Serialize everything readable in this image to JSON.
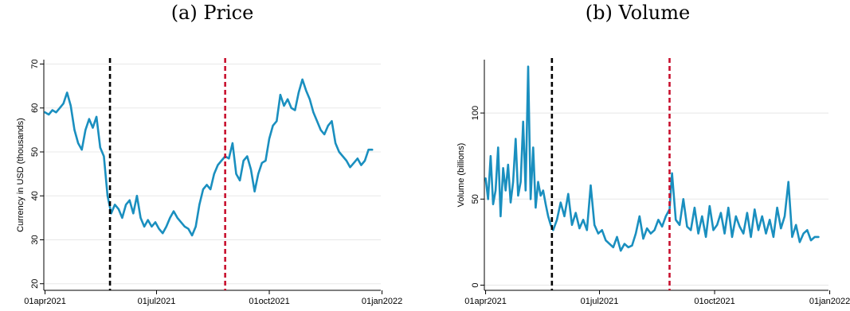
{
  "captions": {
    "a": "(a) Price",
    "b": "(b) Volume"
  },
  "chart_data": [
    {
      "type": "line",
      "title": "(a) Price",
      "xlabel": "",
      "ylabel": "Currency in USD (thousands)",
      "xlim": [
        "2021-03-31",
        "2021-12-31"
      ],
      "ylim": [
        18.5,
        71
      ],
      "y_ticks": [
        20,
        30,
        40,
        50,
        60,
        70
      ],
      "x_ticks": [
        {
          "date": "2021-04-01",
          "label": "01apr2021"
        },
        {
          "date": "2021-07-01",
          "label": "01jul2021"
        },
        {
          "date": "2021-10-01",
          "label": "01oct2021"
        },
        {
          "date": "2022-01-01",
          "label": "01jan2022"
        }
      ],
      "grid": "horizontal",
      "line_color": "#1a8fbf",
      "vlines": [
        {
          "date": "2021-05-24",
          "color": "#000000",
          "style": "dashed"
        },
        {
          "date": "2021-08-26",
          "color": "#c8102e",
          "style": "dashed"
        }
      ],
      "series": [
        {
          "x": [
            "2021-04-01",
            "2021-04-04",
            "2021-04-07",
            "2021-04-10",
            "2021-04-13",
            "2021-04-16",
            "2021-04-19",
            "2021-04-22",
            "2021-04-25",
            "2021-04-28",
            "2021-05-01",
            "2021-05-04",
            "2021-05-07",
            "2021-05-10",
            "2021-05-13",
            "2021-05-16",
            "2021-05-19",
            "2021-05-22",
            "2021-05-25",
            "2021-05-28",
            "2021-05-31",
            "2021-06-03",
            "2021-06-06",
            "2021-06-09",
            "2021-06-12",
            "2021-06-15",
            "2021-06-18",
            "2021-06-21",
            "2021-06-24",
            "2021-06-27",
            "2021-06-30",
            "2021-07-03",
            "2021-07-06",
            "2021-07-09",
            "2021-07-12",
            "2021-07-15",
            "2021-07-18",
            "2021-07-21",
            "2021-07-24",
            "2021-07-27",
            "2021-07-30",
            "2021-08-02",
            "2021-08-05",
            "2021-08-08",
            "2021-08-11",
            "2021-08-14",
            "2021-08-17",
            "2021-08-20",
            "2021-08-23",
            "2021-08-26",
            "2021-08-29",
            "2021-09-01",
            "2021-09-04",
            "2021-09-07",
            "2021-09-10",
            "2021-09-13",
            "2021-09-16",
            "2021-09-19",
            "2021-09-22",
            "2021-09-25",
            "2021-09-28",
            "2021-10-01",
            "2021-10-04",
            "2021-10-07",
            "2021-10-10",
            "2021-10-13",
            "2021-10-16",
            "2021-10-19",
            "2021-10-22",
            "2021-10-25",
            "2021-10-28",
            "2021-10-31",
            "2021-11-03",
            "2021-11-06",
            "2021-11-09",
            "2021-11-12",
            "2021-11-15",
            "2021-11-18",
            "2021-11-21",
            "2021-11-24",
            "2021-11-27",
            "2021-11-30",
            "2021-12-03",
            "2021-12-06",
            "2021-12-09",
            "2021-12-12",
            "2021-12-15",
            "2021-12-18",
            "2021-12-21",
            "2021-12-24"
          ],
          "y": [
            59,
            58.5,
            59.5,
            59,
            60,
            61,
            63.5,
            60.5,
            55,
            52,
            50.5,
            55,
            57.5,
            55.5,
            58,
            51,
            49,
            40,
            36,
            38,
            37,
            35,
            38,
            39,
            36,
            40,
            35,
            33,
            34.5,
            33,
            34,
            32.5,
            31.5,
            33,
            35,
            36.5,
            35,
            34,
            33,
            32.5,
            31,
            33,
            38,
            41.5,
            42.5,
            41.5,
            45,
            47,
            48,
            49,
            48.5,
            52,
            45,
            43.5,
            48,
            49,
            46,
            41,
            45,
            47.5,
            48,
            53,
            56,
            57,
            63,
            60.5,
            62,
            60,
            59.5,
            63.5,
            66.5,
            64,
            62,
            59,
            57,
            55,
            54,
            56,
            57,
            52,
            50,
            49,
            48,
            46.5,
            47.5,
            48.5,
            47,
            48,
            50.5,
            50.5
          ]
        }
      ]
    },
    {
      "type": "line",
      "title": "(b) Volume",
      "xlabel": "",
      "ylabel": "Volume (billions)",
      "xlim": [
        "2021-03-31",
        "2021-12-31"
      ],
      "ylim": [
        -3,
        131
      ],
      "y_ticks": [
        0,
        50,
        100
      ],
      "x_ticks": [
        {
          "date": "2021-04-01",
          "label": "01apr2021"
        },
        {
          "date": "2021-07-01",
          "label": "01jul2021"
        },
        {
          "date": "2021-10-01",
          "label": "01oct2021"
        },
        {
          "date": "2022-01-01",
          "label": "01jan2022"
        }
      ],
      "grid": "horizontal",
      "line_color": "#1a8fbf",
      "vlines": [
        {
          "date": "2021-05-24",
          "color": "#000000",
          "style": "dashed"
        },
        {
          "date": "2021-08-26",
          "color": "#c8102e",
          "style": "dashed"
        }
      ],
      "series": [
        {
          "x": [
            "2021-04-01",
            "2021-04-03",
            "2021-04-05",
            "2021-04-07",
            "2021-04-09",
            "2021-04-11",
            "2021-04-13",
            "2021-04-15",
            "2021-04-17",
            "2021-04-19",
            "2021-04-21",
            "2021-04-23",
            "2021-04-25",
            "2021-04-27",
            "2021-04-29",
            "2021-05-01",
            "2021-05-03",
            "2021-05-05",
            "2021-05-07",
            "2021-05-09",
            "2021-05-11",
            "2021-05-13",
            "2021-05-15",
            "2021-05-17",
            "2021-05-19",
            "2021-05-21",
            "2021-05-23",
            "2021-05-25",
            "2021-05-28",
            "2021-05-31",
            "2021-06-03",
            "2021-06-06",
            "2021-06-09",
            "2021-06-12",
            "2021-06-15",
            "2021-06-18",
            "2021-06-21",
            "2021-06-24",
            "2021-06-27",
            "2021-06-30",
            "2021-07-03",
            "2021-07-06",
            "2021-07-09",
            "2021-07-12",
            "2021-07-15",
            "2021-07-18",
            "2021-07-21",
            "2021-07-24",
            "2021-07-27",
            "2021-07-30",
            "2021-08-02",
            "2021-08-05",
            "2021-08-08",
            "2021-08-11",
            "2021-08-14",
            "2021-08-17",
            "2021-08-20",
            "2021-08-23",
            "2021-08-26",
            "2021-08-28",
            "2021-08-31",
            "2021-09-03",
            "2021-09-06",
            "2021-09-09",
            "2021-09-12",
            "2021-09-15",
            "2021-09-18",
            "2021-09-21",
            "2021-09-24",
            "2021-09-27",
            "2021-09-30",
            "2021-10-03",
            "2021-10-06",
            "2021-10-09",
            "2021-10-12",
            "2021-10-15",
            "2021-10-18",
            "2021-10-21",
            "2021-10-24",
            "2021-10-27",
            "2021-10-30",
            "2021-11-02",
            "2021-11-05",
            "2021-11-08",
            "2021-11-11",
            "2021-11-14",
            "2021-11-17",
            "2021-11-20",
            "2021-11-23",
            "2021-11-26",
            "2021-11-29",
            "2021-12-02",
            "2021-12-05",
            "2021-12-08",
            "2021-12-11",
            "2021-12-14",
            "2021-12-17",
            "2021-12-20",
            "2021-12-23"
          ],
          "y": [
            62,
            50,
            75,
            47,
            55,
            80,
            40,
            68,
            55,
            70,
            48,
            60,
            85,
            52,
            60,
            95,
            55,
            127,
            50,
            80,
            45,
            60,
            52,
            55,
            47,
            40,
            35,
            32,
            38,
            48,
            40,
            53,
            35,
            42,
            33,
            38,
            32,
            58,
            35,
            30,
            32,
            26,
            24,
            22,
            28,
            20,
            24,
            22,
            23,
            30,
            40,
            27,
            33,
            30,
            32,
            38,
            34,
            40,
            44,
            65,
            38,
            35,
            50,
            34,
            32,
            45,
            30,
            40,
            28,
            46,
            32,
            35,
            42,
            30,
            45,
            28,
            40,
            34,
            30,
            42,
            28,
            44,
            32,
            40,
            30,
            38,
            28,
            45,
            33,
            40,
            60,
            28,
            35,
            25,
            30,
            32,
            26,
            28,
            28
          ]
        }
      ]
    }
  ]
}
